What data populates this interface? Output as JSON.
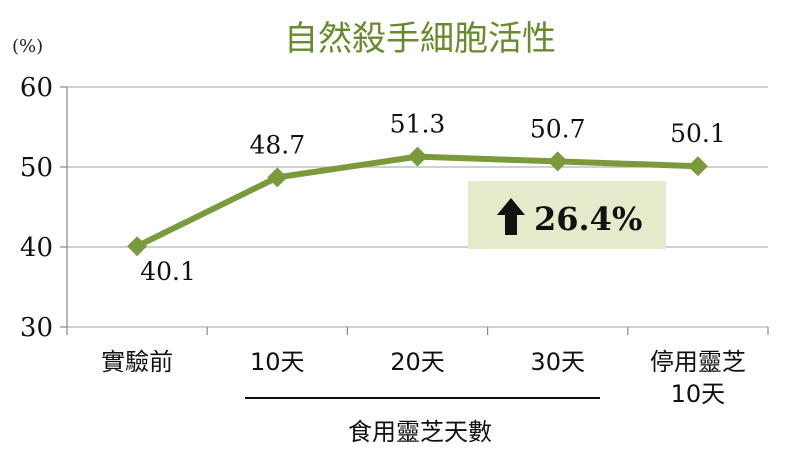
{
  "chart_data": {
    "type": "line",
    "title": "自然殺手細胞活性",
    "unit_label": "(%)",
    "categories": [
      "實驗前",
      "10天",
      "20天",
      "30天",
      "停用靈芝 10天"
    ],
    "category_lines": [
      [
        "實驗前"
      ],
      [
        "10天"
      ],
      [
        "20天"
      ],
      [
        "30天"
      ],
      [
        "停用靈芝",
        "10天"
      ]
    ],
    "series": [
      {
        "values": [
          40.1,
          48.7,
          51.3,
          50.7,
          50.1
        ]
      }
    ],
    "data_labels": [
      "40.1",
      "48.7",
      "51.3",
      "50.7",
      "50.1"
    ],
    "ylim": [
      30,
      60
    ],
    "yticks": [
      30,
      40,
      50,
      60
    ],
    "xlabel": "食用靈芝天數",
    "grid": true,
    "annotation": {
      "arrow": "up-arrow",
      "text": "26.4%"
    },
    "colors": {
      "line": "#7b9a3c",
      "title": "#6a8a2e",
      "callout_bg": "#e3ebcb",
      "grid": "#b5b5b5"
    }
  }
}
